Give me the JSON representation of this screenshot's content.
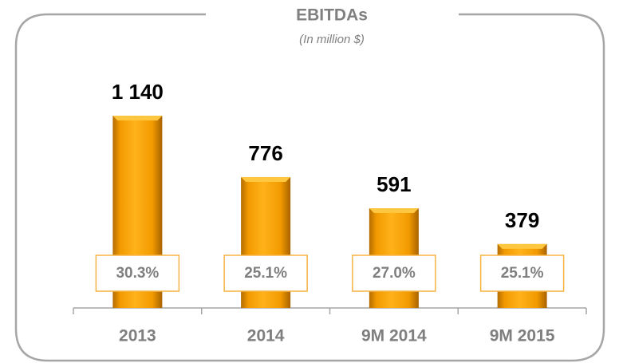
{
  "chart_data": {
    "type": "bar",
    "title": "EBITDAs",
    "subtitle": "(In million $)",
    "categories": [
      "2013",
      "2014",
      "9M 2014",
      "9M 2015"
    ],
    "values": [
      1140,
      776,
      591,
      379
    ],
    "value_labels": [
      "1 140",
      "776",
      "591",
      "379"
    ],
    "annotations": [
      "30.3%",
      "25.1%",
      "27.0%",
      "25.1%"
    ],
    "color": "#f7a200"
  }
}
